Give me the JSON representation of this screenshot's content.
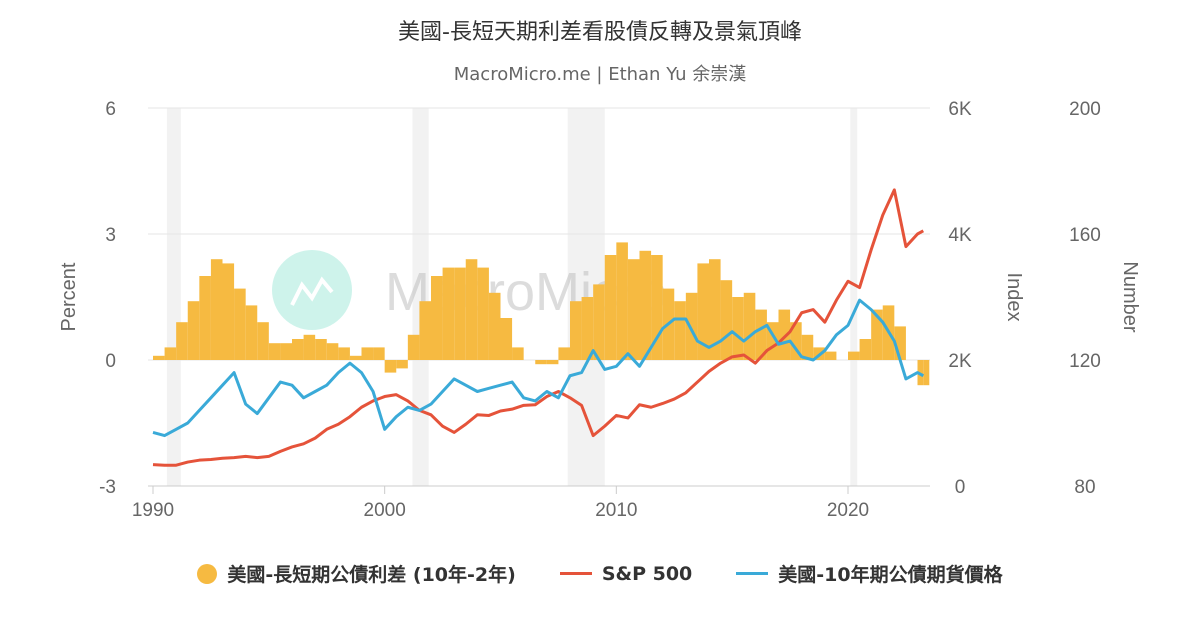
{
  "title": "美國-長短天期利差看股債反轉及景氣頂峰",
  "subtitle": "MacroMicro.me | Ethan Yu 余崇漢",
  "watermark": "MacroMicro",
  "colors": {
    "spread": "#F6BA41",
    "sp500": "#E5533A",
    "bond": "#3AAAD8",
    "recession": "#F2F2F2",
    "grid": "#E6E6E6"
  },
  "chart_data": {
    "type": "bar+line",
    "title": "美國-長短天期利差看股債反轉及景氣頂峰",
    "xlim": [
      1990,
      2023.3
    ],
    "xticks": [
      "1990",
      "2000",
      "2010",
      "2020"
    ],
    "axes": {
      "left": {
        "label": "Percent",
        "range": [
          -3,
          6
        ],
        "ticks": [
          "-3",
          "0",
          "3",
          "6"
        ]
      },
      "middle": {
        "label": "Index",
        "range": [
          0,
          6000
        ],
        "ticks": [
          "0",
          "2K",
          "4K",
          "6K"
        ]
      },
      "right": {
        "label": "Number",
        "range": [
          80,
          200
        ],
        "ticks": [
          "80",
          "120",
          "160",
          "200"
        ]
      }
    },
    "grid": true,
    "legend_position": "bottom",
    "recessions": [
      [
        1990.6,
        1991.2
      ],
      [
        2001.2,
        2001.9
      ],
      [
        2007.9,
        2009.5
      ],
      [
        2020.1,
        2020.4
      ]
    ],
    "x": [
      1990,
      1990.5,
      1991,
      1991.5,
      1992,
      1992.5,
      1993,
      1993.5,
      1994,
      1994.5,
      1995,
      1995.5,
      1996,
      1996.5,
      1997,
      1997.5,
      1998,
      1998.5,
      1999,
      1999.5,
      2000,
      2000.5,
      2001,
      2001.5,
      2002,
      2002.5,
      2003,
      2003.5,
      2004,
      2004.5,
      2005,
      2005.5,
      2006,
      2006.5,
      2007,
      2007.5,
      2008,
      2008.5,
      2009,
      2009.5,
      2010,
      2010.5,
      2011,
      2011.5,
      2012,
      2012.5,
      2013,
      2013.5,
      2014,
      2014.5,
      2015,
      2015.5,
      2016,
      2016.5,
      2017,
      2017.5,
      2018,
      2018.5,
      2019,
      2019.5,
      2020,
      2020.5,
      2021,
      2021.5,
      2022,
      2022.5,
      2023,
      2023.25
    ],
    "series": [
      {
        "name": "美國-長短期公債利差 (10年-2年)",
        "type": "bar",
        "axis": "left",
        "values": [
          0.1,
          0.3,
          0.9,
          1.4,
          2.0,
          2.4,
          2.3,
          1.7,
          1.3,
          0.9,
          0.4,
          0.4,
          0.5,
          0.6,
          0.5,
          0.4,
          0.3,
          0.1,
          0.3,
          0.3,
          -0.3,
          -0.2,
          0.6,
          1.4,
          2.0,
          2.2,
          2.2,
          2.4,
          2.2,
          1.6,
          1.0,
          0.3,
          0.0,
          -0.1,
          -0.1,
          0.3,
          1.4,
          1.5,
          1.8,
          2.5,
          2.8,
          2.4,
          2.6,
          2.5,
          1.7,
          1.4,
          1.6,
          2.3,
          2.4,
          1.9,
          1.5,
          1.6,
          1.2,
          0.9,
          1.2,
          0.9,
          0.6,
          0.3,
          0.2,
          0.0,
          0.2,
          0.5,
          1.2,
          1.3,
          0.8,
          0.0,
          -0.6,
          -0.6
        ]
      },
      {
        "name": "S&P 500",
        "type": "line",
        "axis": "middle",
        "values": [
          340,
          330,
          330,
          380,
          410,
          420,
          440,
          450,
          470,
          450,
          470,
          550,
          620,
          670,
          760,
          900,
          980,
          1100,
          1250,
          1350,
          1420,
          1450,
          1350,
          1200,
          1130,
          950,
          850,
          980,
          1130,
          1120,
          1190,
          1220,
          1280,
          1290,
          1420,
          1500,
          1400,
          1280,
          800,
          950,
          1120,
          1080,
          1290,
          1250,
          1310,
          1380,
          1480,
          1650,
          1820,
          1950,
          2050,
          2080,
          1950,
          2150,
          2270,
          2450,
          2750,
          2800,
          2600,
          2950,
          3250,
          3150,
          3750,
          4300,
          4700,
          3800,
          4000,
          4050
        ]
      },
      {
        "name": "美國-10年期公債期貨價格",
        "type": "line",
        "axis": "right",
        "values": [
          97,
          96,
          98,
          100,
          104,
          108,
          112,
          116,
          106,
          103,
          108,
          113,
          112,
          108,
          110,
          112,
          116,
          119,
          116,
          110,
          98,
          102,
          105,
          104,
          106,
          110,
          114,
          112,
          110,
          111,
          112,
          113,
          108,
          107,
          110,
          108,
          115,
          116,
          123,
          117,
          118,
          122,
          118,
          124,
          130,
          133,
          133,
          126,
          124,
          126,
          129,
          126,
          129,
          131,
          125,
          126,
          121,
          120,
          123,
          128,
          131,
          139,
          136,
          132,
          126,
          114,
          116,
          115
        ]
      }
    ]
  }
}
